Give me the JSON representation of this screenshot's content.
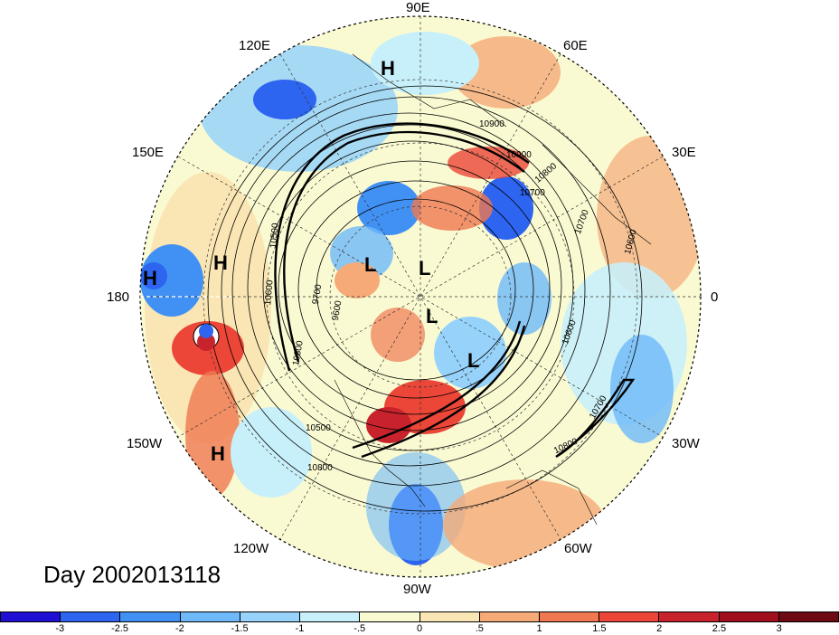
{
  "map": {
    "longitude_labels": [
      {
        "key": "e90",
        "text": "90E"
      },
      {
        "key": "e120",
        "text": "120E"
      },
      {
        "key": "e60",
        "text": "60E"
      },
      {
        "key": "e150",
        "text": "150E"
      },
      {
        "key": "e30",
        "text": "30E"
      },
      {
        "key": "w180",
        "text": "180"
      },
      {
        "key": "zero",
        "text": "0"
      },
      {
        "key": "w150",
        "text": "150W"
      },
      {
        "key": "w30",
        "text": "30W"
      },
      {
        "key": "w120",
        "text": "120W"
      },
      {
        "key": "w60",
        "text": "60W"
      },
      {
        "key": "w90",
        "text": "90W"
      }
    ],
    "pressure_centers": [
      "H",
      "H",
      "H",
      "H",
      "L",
      "L",
      "L",
      "L"
    ],
    "contour_labels": [
      "10900",
      "10800",
      "10700",
      "10600",
      "10500",
      "10600",
      "10800",
      "9700",
      "9600",
      "10900",
      "10700",
      "10600",
      "10800",
      "10700",
      "10800",
      "10500"
    ],
    "day_label": "Day 2002013118"
  },
  "colorbar": {
    "colors": [
      "#1e0fd2",
      "#2d64f0",
      "#4191f5",
      "#6eb9fa",
      "#96d2fa",
      "#c8f0fa",
      "#fafad2",
      "#fae6b4",
      "#f5aa78",
      "#f07850",
      "#eb4637",
      "#c8232d",
      "#a00f1e"
    ],
    "ticks": [
      "-3",
      "-2.5",
      "-2",
      "-1.5",
      "-1",
      "-.5",
      "0",
      ".5",
      "1",
      "1.5",
      "2",
      "2.5",
      "3"
    ]
  }
}
